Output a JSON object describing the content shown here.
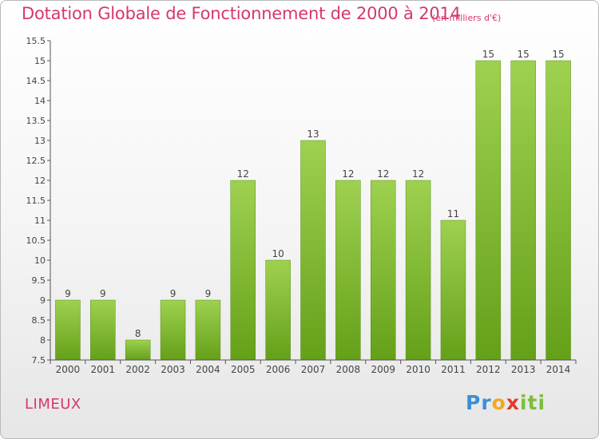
{
  "header": {
    "title": "Dotation Globale de Fonctionnement de 2000 à 2014",
    "subtitle": "(en milliers d'€)"
  },
  "footer": {
    "commune": "LIMEUX",
    "logo": {
      "p1": "Pr",
      "p2": "o",
      "p3": "x",
      "p4": "iti"
    }
  },
  "colors": {
    "title": "#d6376f",
    "bar_top": "#9ed150",
    "bar_bottom": "#65a019",
    "axis": "#555555",
    "grid": "#d8d8d8"
  },
  "chart_data": {
    "type": "bar",
    "title": "Dotation Globale de Fonctionnement de 2000 à 2014",
    "categories": [
      "2000",
      "2001",
      "2002",
      "2003",
      "2004",
      "2005",
      "2006",
      "2007",
      "2008",
      "2009",
      "2010",
      "2011",
      "2012",
      "2013",
      "2014"
    ],
    "values": [
      9,
      9,
      8,
      9,
      9,
      12,
      10,
      13,
      12,
      12,
      12,
      11,
      15,
      15,
      15
    ],
    "value_labels": [
      "9",
      "9",
      "8",
      "9",
      "9",
      "12",
      "10",
      "13",
      "12",
      "12",
      "12",
      "11",
      "15",
      "15",
      "15"
    ],
    "ylim": [
      7.5,
      15.5
    ],
    "yticks": [
      7.5,
      8,
      8.5,
      9,
      9.5,
      10,
      10.5,
      11,
      11.5,
      12,
      12.5,
      13,
      13.5,
      14,
      14.5,
      15,
      15.5
    ],
    "ytick_labels": [
      "7.5",
      "8",
      "8.5",
      "9",
      "9.5",
      "10",
      "10.5",
      "11",
      "11.5",
      "12",
      "12.5",
      "13",
      "13.5",
      "14",
      "14.5",
      "15",
      "15.5"
    ],
    "grid": false,
    "legend": "none"
  }
}
